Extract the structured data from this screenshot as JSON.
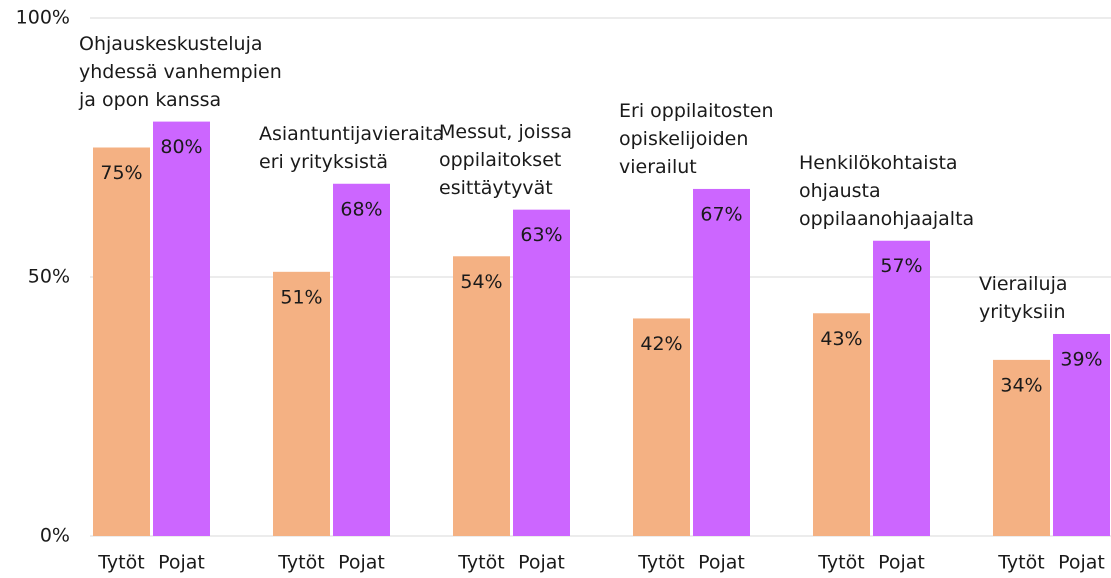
{
  "chart_data": {
    "type": "bar",
    "categories": [
      "Ohjauskeskusteluja\nyhdessä vanhempien\nja opon kanssa",
      "Asiantuntijavieraita\neri yrityksistä",
      "Messut, joissa\noppilaitokset\nesittäytyvät",
      "Eri oppilaitosten\nopiskelijoiden\nvierailut",
      "Henkilökohtaista\nohjausta\noppilaanohjaajalta",
      "Vierailuja\nyrityksiin"
    ],
    "series": [
      {
        "name": "Tytöt",
        "color": "#f4b183",
        "values": [
          75,
          51,
          54,
          42,
          43,
          34
        ],
        "value_labels": [
          "75%",
          "51%",
          "54%",
          "42%",
          "43%",
          "34%"
        ]
      },
      {
        "name": "Pojat",
        "color": "#cc66ff",
        "values": [
          80,
          68,
          63,
          67,
          57,
          39
        ],
        "value_labels": [
          "80%",
          "68%",
          "63%",
          "67%",
          "57%",
          "39%"
        ]
      }
    ],
    "ylim": [
      0,
      100
    ],
    "yticks": [
      {
        "value": 0,
        "label": "0%"
      },
      {
        "value": 50,
        "label": "50%"
      },
      {
        "value": 100,
        "label": "100%"
      }
    ],
    "grid": true
  }
}
